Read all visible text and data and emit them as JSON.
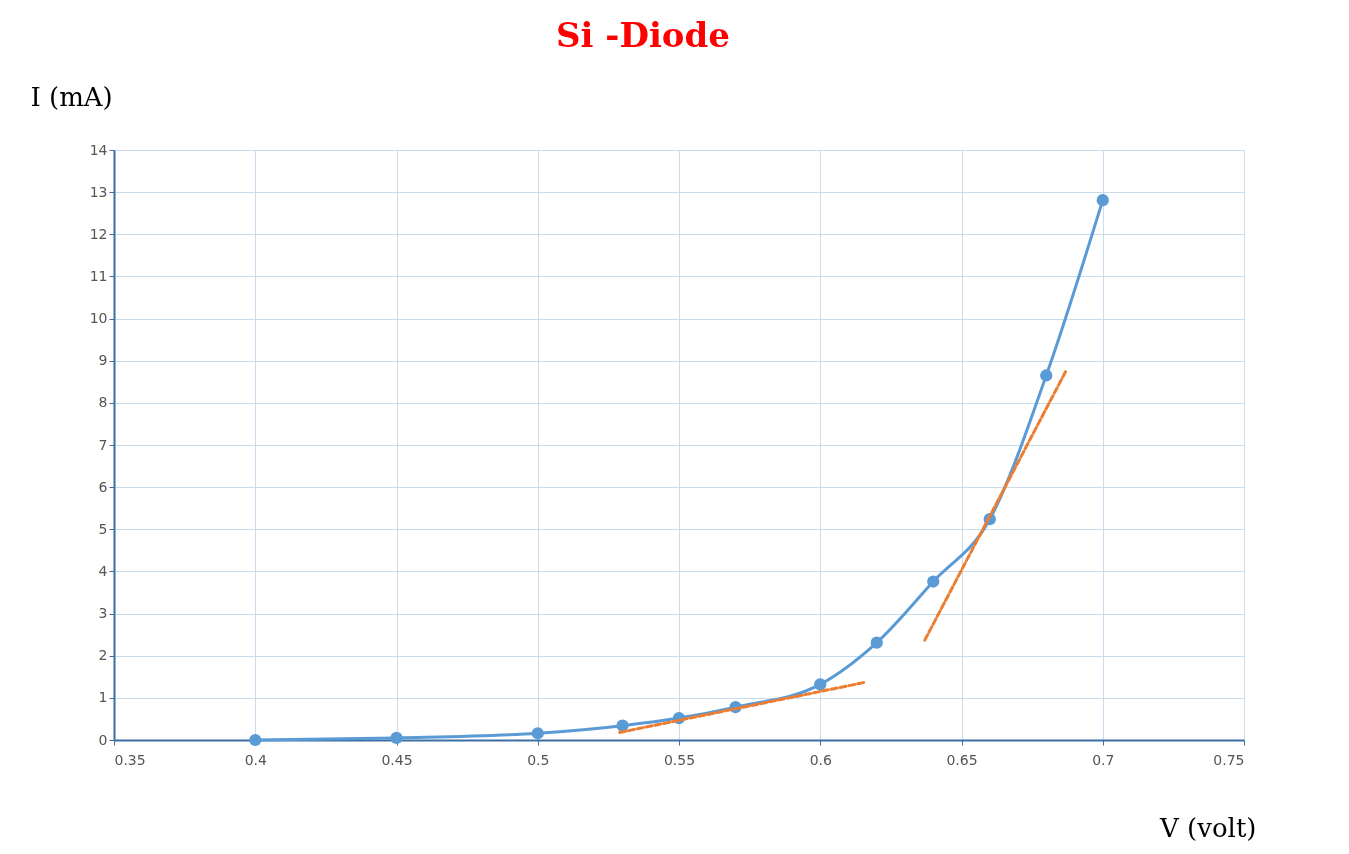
{
  "chart_data": {
    "type": "line",
    "title": "Si -Diode",
    "xlabel": "V (volt)",
    "ylabel": "I (mA)",
    "xlim": [
      0.35,
      0.75
    ],
    "xticks": [
      0.35,
      0.4,
      0.45,
      0.5,
      0.55,
      0.6,
      0.65,
      0.7,
      0.75
    ],
    "ylim": [
      0,
      14
    ],
    "yticks": [
      0,
      1,
      2,
      3,
      4,
      5,
      6,
      7,
      8,
      9,
      10,
      11,
      12,
      13,
      14
    ],
    "grid": true,
    "series": [
      {
        "color": "#5b9bd5",
        "marker": "circle",
        "line_style": "solid",
        "x": [
          0.4,
          0.45,
          0.5,
          0.53,
          0.55,
          0.57,
          0.6,
          0.62,
          0.64,
          0.66,
          0.68,
          0.7
        ],
        "values": [
          0.0,
          0.05,
          0.16,
          0.34,
          0.52,
          0.78,
          1.32,
          2.31,
          3.76,
          5.24,
          8.65,
          12.81
        ]
      },
      {
        "color": "#ed7d31",
        "marker": "none",
        "line_style": "dashed",
        "x": [
          0.529,
          0.616
        ],
        "values": [
          0.18,
          1.37
        ]
      },
      {
        "color": "#ed7d31",
        "marker": "none",
        "line_style": "dashed",
        "x": [
          0.637,
          0.687
        ],
        "values": [
          2.37,
          8.76
        ]
      }
    ]
  }
}
